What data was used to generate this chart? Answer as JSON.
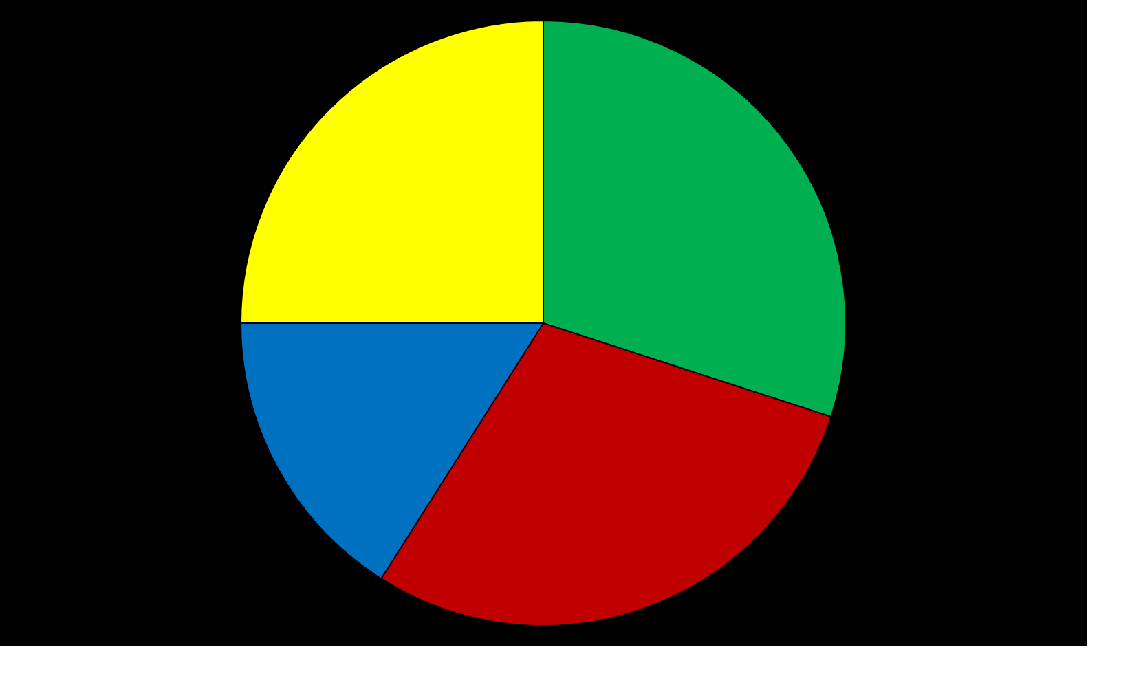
{
  "chart_data": {
    "type": "pie",
    "categories": [
      null,
      null,
      null,
      null
    ],
    "values": [
      30,
      29,
      16,
      25
    ],
    "colors": [
      "#00b050",
      "#c00000",
      "#0070c0",
      "#ffff00"
    ],
    "legend": false
  }
}
